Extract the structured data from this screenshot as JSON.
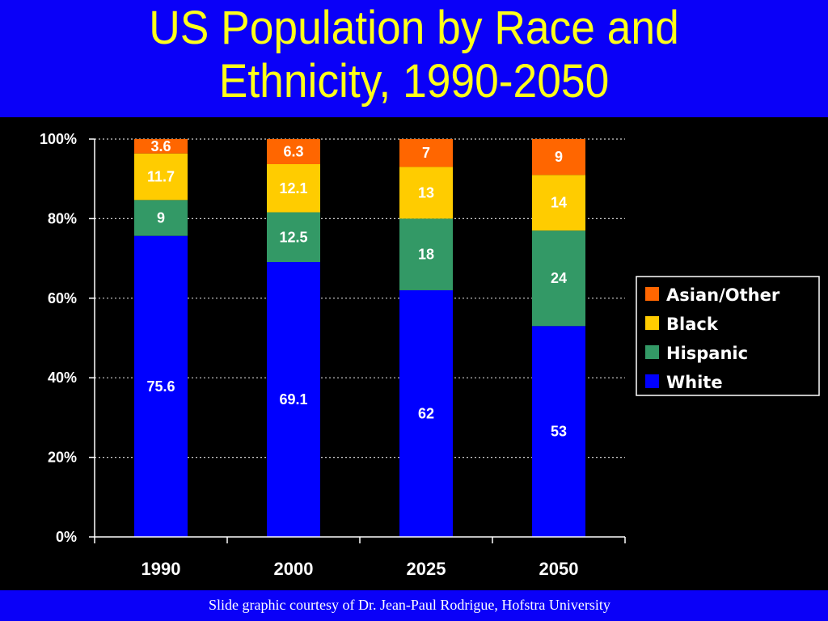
{
  "title": {
    "line1": "US Population by Race and",
    "line2": "Ethnicity, 1990-2050"
  },
  "footer": {
    "credit": "Slide graphic courtesy of Dr. Jean-Paul Rodrigue, Hofstra University"
  },
  "colors": {
    "band": "#0a00f8",
    "title_text": "#ffff1a",
    "background": "#000000"
  },
  "chart_data": {
    "type": "bar",
    "stacked": true,
    "percent_stacked": true,
    "categories": [
      "1990",
      "2000",
      "2025",
      "2050"
    ],
    "series": [
      {
        "name": "White",
        "color": "#0000ff",
        "label_color": "#ffffff",
        "values": [
          75.6,
          69.1,
          62,
          53
        ]
      },
      {
        "name": "Hispanic",
        "color": "#339966",
        "label_color": "#ffffff",
        "values": [
          9,
          12.5,
          18,
          24
        ]
      },
      {
        "name": "Black",
        "color": "#ffcc00",
        "label_color": "#ffffff",
        "values": [
          11.7,
          12.1,
          13,
          14
        ]
      },
      {
        "name": "Asian/Other",
        "color": "#ff6600",
        "label_color": "#ffffff",
        "values": [
          3.6,
          6.3,
          7,
          9
        ]
      }
    ],
    "y_ticks": [
      "0%",
      "20%",
      "40%",
      "60%",
      "80%",
      "100%"
    ],
    "ylim": [
      0,
      100
    ],
    "grid": true,
    "grid_style": "dotted",
    "legend_position": "right",
    "legend_order": [
      "Asian/Other",
      "Black",
      "Hispanic",
      "White"
    ]
  }
}
